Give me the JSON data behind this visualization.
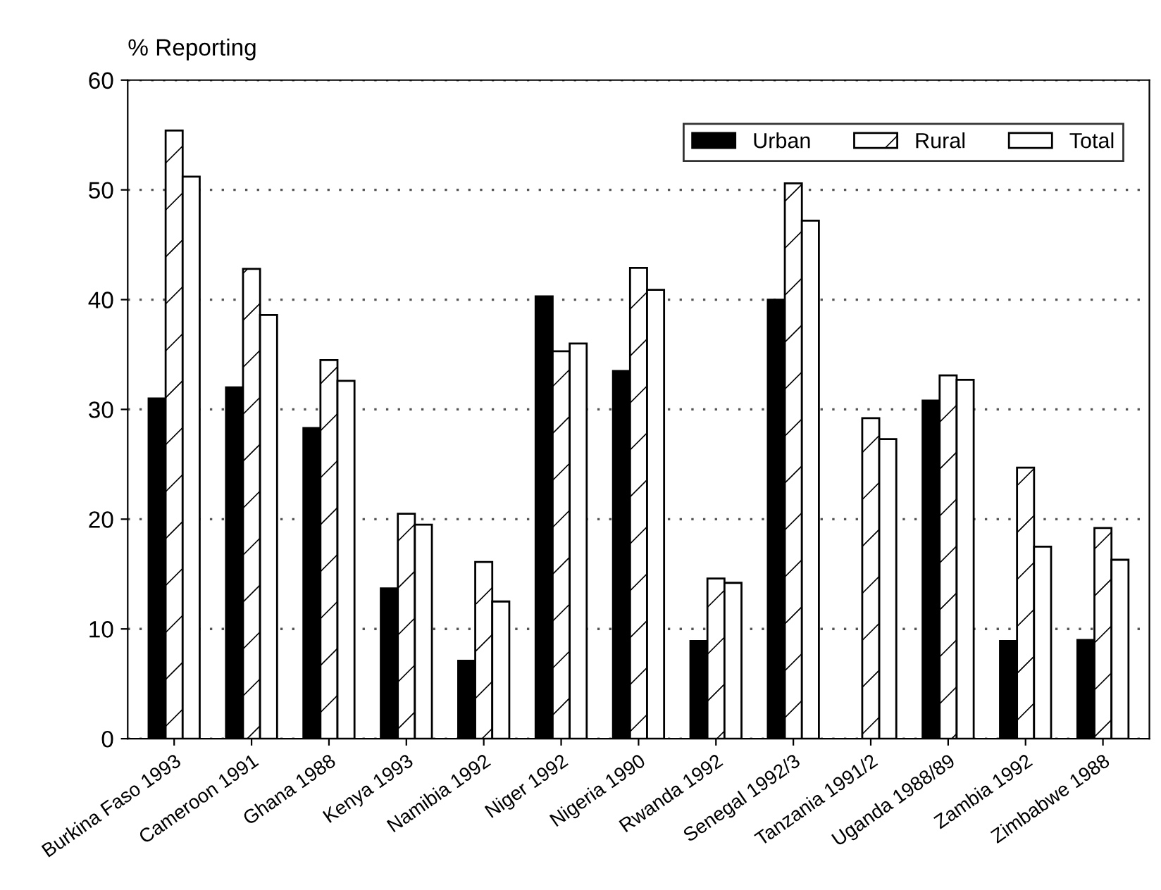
{
  "chart_data": {
    "type": "bar",
    "ylabel": "% Reporting",
    "categories": [
      "Burkina Faso 1993",
      "Cameroon 1991",
      "Ghana 1988",
      "Kenya 1993",
      "Namibia 1992",
      "Niger 1992",
      "Nigeria 1990",
      "Rwanda 1992",
      "Senegal 1992/3",
      "Tanzania 1991/2",
      "Uganda 1988/89",
      "Zambia 1992",
      "Zimbabwe 1988"
    ],
    "series": [
      {
        "name": "Urban",
        "color": "#000000",
        "values": [
          31,
          32,
          28.3,
          13.7,
          7.1,
          40.3,
          33.5,
          8.9,
          40,
          null,
          30.8,
          8.9,
          9
        ]
      },
      {
        "name": "Rural",
        "color": "#000000",
        "values": [
          55.4,
          42.8,
          34.5,
          20.5,
          16.1,
          35.3,
          42.9,
          14.6,
          50.6,
          29.2,
          33.1,
          24.7,
          19.2
        ]
      },
      {
        "name": "Total",
        "color": "#ffffff",
        "values": [
          51.2,
          38.6,
          32.6,
          19.5,
          12.5,
          36,
          40.9,
          14.2,
          47.2,
          27.3,
          32.7,
          17.5,
          16.3
        ]
      }
    ],
    "ylim": [
      0,
      60
    ],
    "yticks": [
      0,
      10,
      20,
      30,
      40,
      50,
      60
    ],
    "grid": "y",
    "legend": "top right"
  }
}
